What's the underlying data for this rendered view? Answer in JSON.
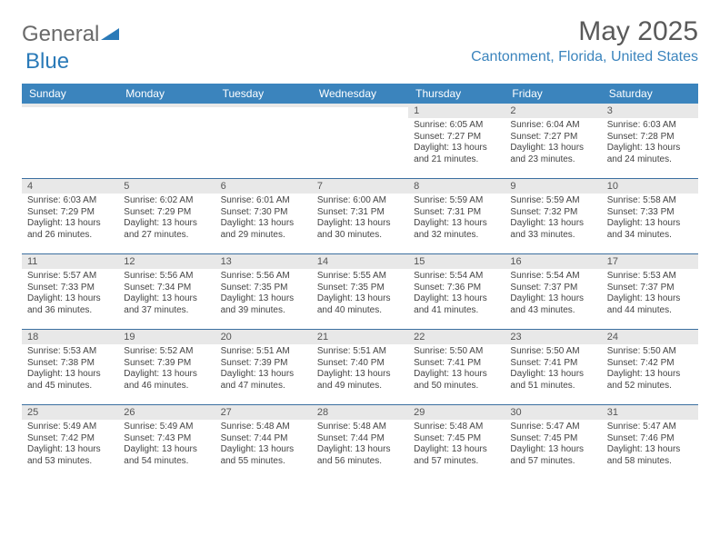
{
  "logo": {
    "text1": "General",
    "text2": "Blue"
  },
  "title": "May 2025",
  "location": "Cantonment, Florida, United States",
  "colors": {
    "header_bg": "#3b84bd",
    "header_text": "#ffffff",
    "week_divider": "#3b6fa0",
    "daynum_bg": "#e8e8e8",
    "location_color": "#3b84bd",
    "logo_accent": "#2a7ab8"
  },
  "dayNames": [
    "Sunday",
    "Monday",
    "Tuesday",
    "Wednesday",
    "Thursday",
    "Friday",
    "Saturday"
  ],
  "weeks": [
    [
      {
        "n": "",
        "sr": "",
        "ss": "",
        "dl": ""
      },
      {
        "n": "",
        "sr": "",
        "ss": "",
        "dl": ""
      },
      {
        "n": "",
        "sr": "",
        "ss": "",
        "dl": ""
      },
      {
        "n": "",
        "sr": "",
        "ss": "",
        "dl": ""
      },
      {
        "n": "1",
        "sr": "Sunrise: 6:05 AM",
        "ss": "Sunset: 7:27 PM",
        "dl": "Daylight: 13 hours and 21 minutes."
      },
      {
        "n": "2",
        "sr": "Sunrise: 6:04 AM",
        "ss": "Sunset: 7:27 PM",
        "dl": "Daylight: 13 hours and 23 minutes."
      },
      {
        "n": "3",
        "sr": "Sunrise: 6:03 AM",
        "ss": "Sunset: 7:28 PM",
        "dl": "Daylight: 13 hours and 24 minutes."
      }
    ],
    [
      {
        "n": "4",
        "sr": "Sunrise: 6:03 AM",
        "ss": "Sunset: 7:29 PM",
        "dl": "Daylight: 13 hours and 26 minutes."
      },
      {
        "n": "5",
        "sr": "Sunrise: 6:02 AM",
        "ss": "Sunset: 7:29 PM",
        "dl": "Daylight: 13 hours and 27 minutes."
      },
      {
        "n": "6",
        "sr": "Sunrise: 6:01 AM",
        "ss": "Sunset: 7:30 PM",
        "dl": "Daylight: 13 hours and 29 minutes."
      },
      {
        "n": "7",
        "sr": "Sunrise: 6:00 AM",
        "ss": "Sunset: 7:31 PM",
        "dl": "Daylight: 13 hours and 30 minutes."
      },
      {
        "n": "8",
        "sr": "Sunrise: 5:59 AM",
        "ss": "Sunset: 7:31 PM",
        "dl": "Daylight: 13 hours and 32 minutes."
      },
      {
        "n": "9",
        "sr": "Sunrise: 5:59 AM",
        "ss": "Sunset: 7:32 PM",
        "dl": "Daylight: 13 hours and 33 minutes."
      },
      {
        "n": "10",
        "sr": "Sunrise: 5:58 AM",
        "ss": "Sunset: 7:33 PM",
        "dl": "Daylight: 13 hours and 34 minutes."
      }
    ],
    [
      {
        "n": "11",
        "sr": "Sunrise: 5:57 AM",
        "ss": "Sunset: 7:33 PM",
        "dl": "Daylight: 13 hours and 36 minutes."
      },
      {
        "n": "12",
        "sr": "Sunrise: 5:56 AM",
        "ss": "Sunset: 7:34 PM",
        "dl": "Daylight: 13 hours and 37 minutes."
      },
      {
        "n": "13",
        "sr": "Sunrise: 5:56 AM",
        "ss": "Sunset: 7:35 PM",
        "dl": "Daylight: 13 hours and 39 minutes."
      },
      {
        "n": "14",
        "sr": "Sunrise: 5:55 AM",
        "ss": "Sunset: 7:35 PM",
        "dl": "Daylight: 13 hours and 40 minutes."
      },
      {
        "n": "15",
        "sr": "Sunrise: 5:54 AM",
        "ss": "Sunset: 7:36 PM",
        "dl": "Daylight: 13 hours and 41 minutes."
      },
      {
        "n": "16",
        "sr": "Sunrise: 5:54 AM",
        "ss": "Sunset: 7:37 PM",
        "dl": "Daylight: 13 hours and 43 minutes."
      },
      {
        "n": "17",
        "sr": "Sunrise: 5:53 AM",
        "ss": "Sunset: 7:37 PM",
        "dl": "Daylight: 13 hours and 44 minutes."
      }
    ],
    [
      {
        "n": "18",
        "sr": "Sunrise: 5:53 AM",
        "ss": "Sunset: 7:38 PM",
        "dl": "Daylight: 13 hours and 45 minutes."
      },
      {
        "n": "19",
        "sr": "Sunrise: 5:52 AM",
        "ss": "Sunset: 7:39 PM",
        "dl": "Daylight: 13 hours and 46 minutes."
      },
      {
        "n": "20",
        "sr": "Sunrise: 5:51 AM",
        "ss": "Sunset: 7:39 PM",
        "dl": "Daylight: 13 hours and 47 minutes."
      },
      {
        "n": "21",
        "sr": "Sunrise: 5:51 AM",
        "ss": "Sunset: 7:40 PM",
        "dl": "Daylight: 13 hours and 49 minutes."
      },
      {
        "n": "22",
        "sr": "Sunrise: 5:50 AM",
        "ss": "Sunset: 7:41 PM",
        "dl": "Daylight: 13 hours and 50 minutes."
      },
      {
        "n": "23",
        "sr": "Sunrise: 5:50 AM",
        "ss": "Sunset: 7:41 PM",
        "dl": "Daylight: 13 hours and 51 minutes."
      },
      {
        "n": "24",
        "sr": "Sunrise: 5:50 AM",
        "ss": "Sunset: 7:42 PM",
        "dl": "Daylight: 13 hours and 52 minutes."
      }
    ],
    [
      {
        "n": "25",
        "sr": "Sunrise: 5:49 AM",
        "ss": "Sunset: 7:42 PM",
        "dl": "Daylight: 13 hours and 53 minutes."
      },
      {
        "n": "26",
        "sr": "Sunrise: 5:49 AM",
        "ss": "Sunset: 7:43 PM",
        "dl": "Daylight: 13 hours and 54 minutes."
      },
      {
        "n": "27",
        "sr": "Sunrise: 5:48 AM",
        "ss": "Sunset: 7:44 PM",
        "dl": "Daylight: 13 hours and 55 minutes."
      },
      {
        "n": "28",
        "sr": "Sunrise: 5:48 AM",
        "ss": "Sunset: 7:44 PM",
        "dl": "Daylight: 13 hours and 56 minutes."
      },
      {
        "n": "29",
        "sr": "Sunrise: 5:48 AM",
        "ss": "Sunset: 7:45 PM",
        "dl": "Daylight: 13 hours and 57 minutes."
      },
      {
        "n": "30",
        "sr": "Sunrise: 5:47 AM",
        "ss": "Sunset: 7:45 PM",
        "dl": "Daylight: 13 hours and 57 minutes."
      },
      {
        "n": "31",
        "sr": "Sunrise: 5:47 AM",
        "ss": "Sunset: 7:46 PM",
        "dl": "Daylight: 13 hours and 58 minutes."
      }
    ]
  ]
}
